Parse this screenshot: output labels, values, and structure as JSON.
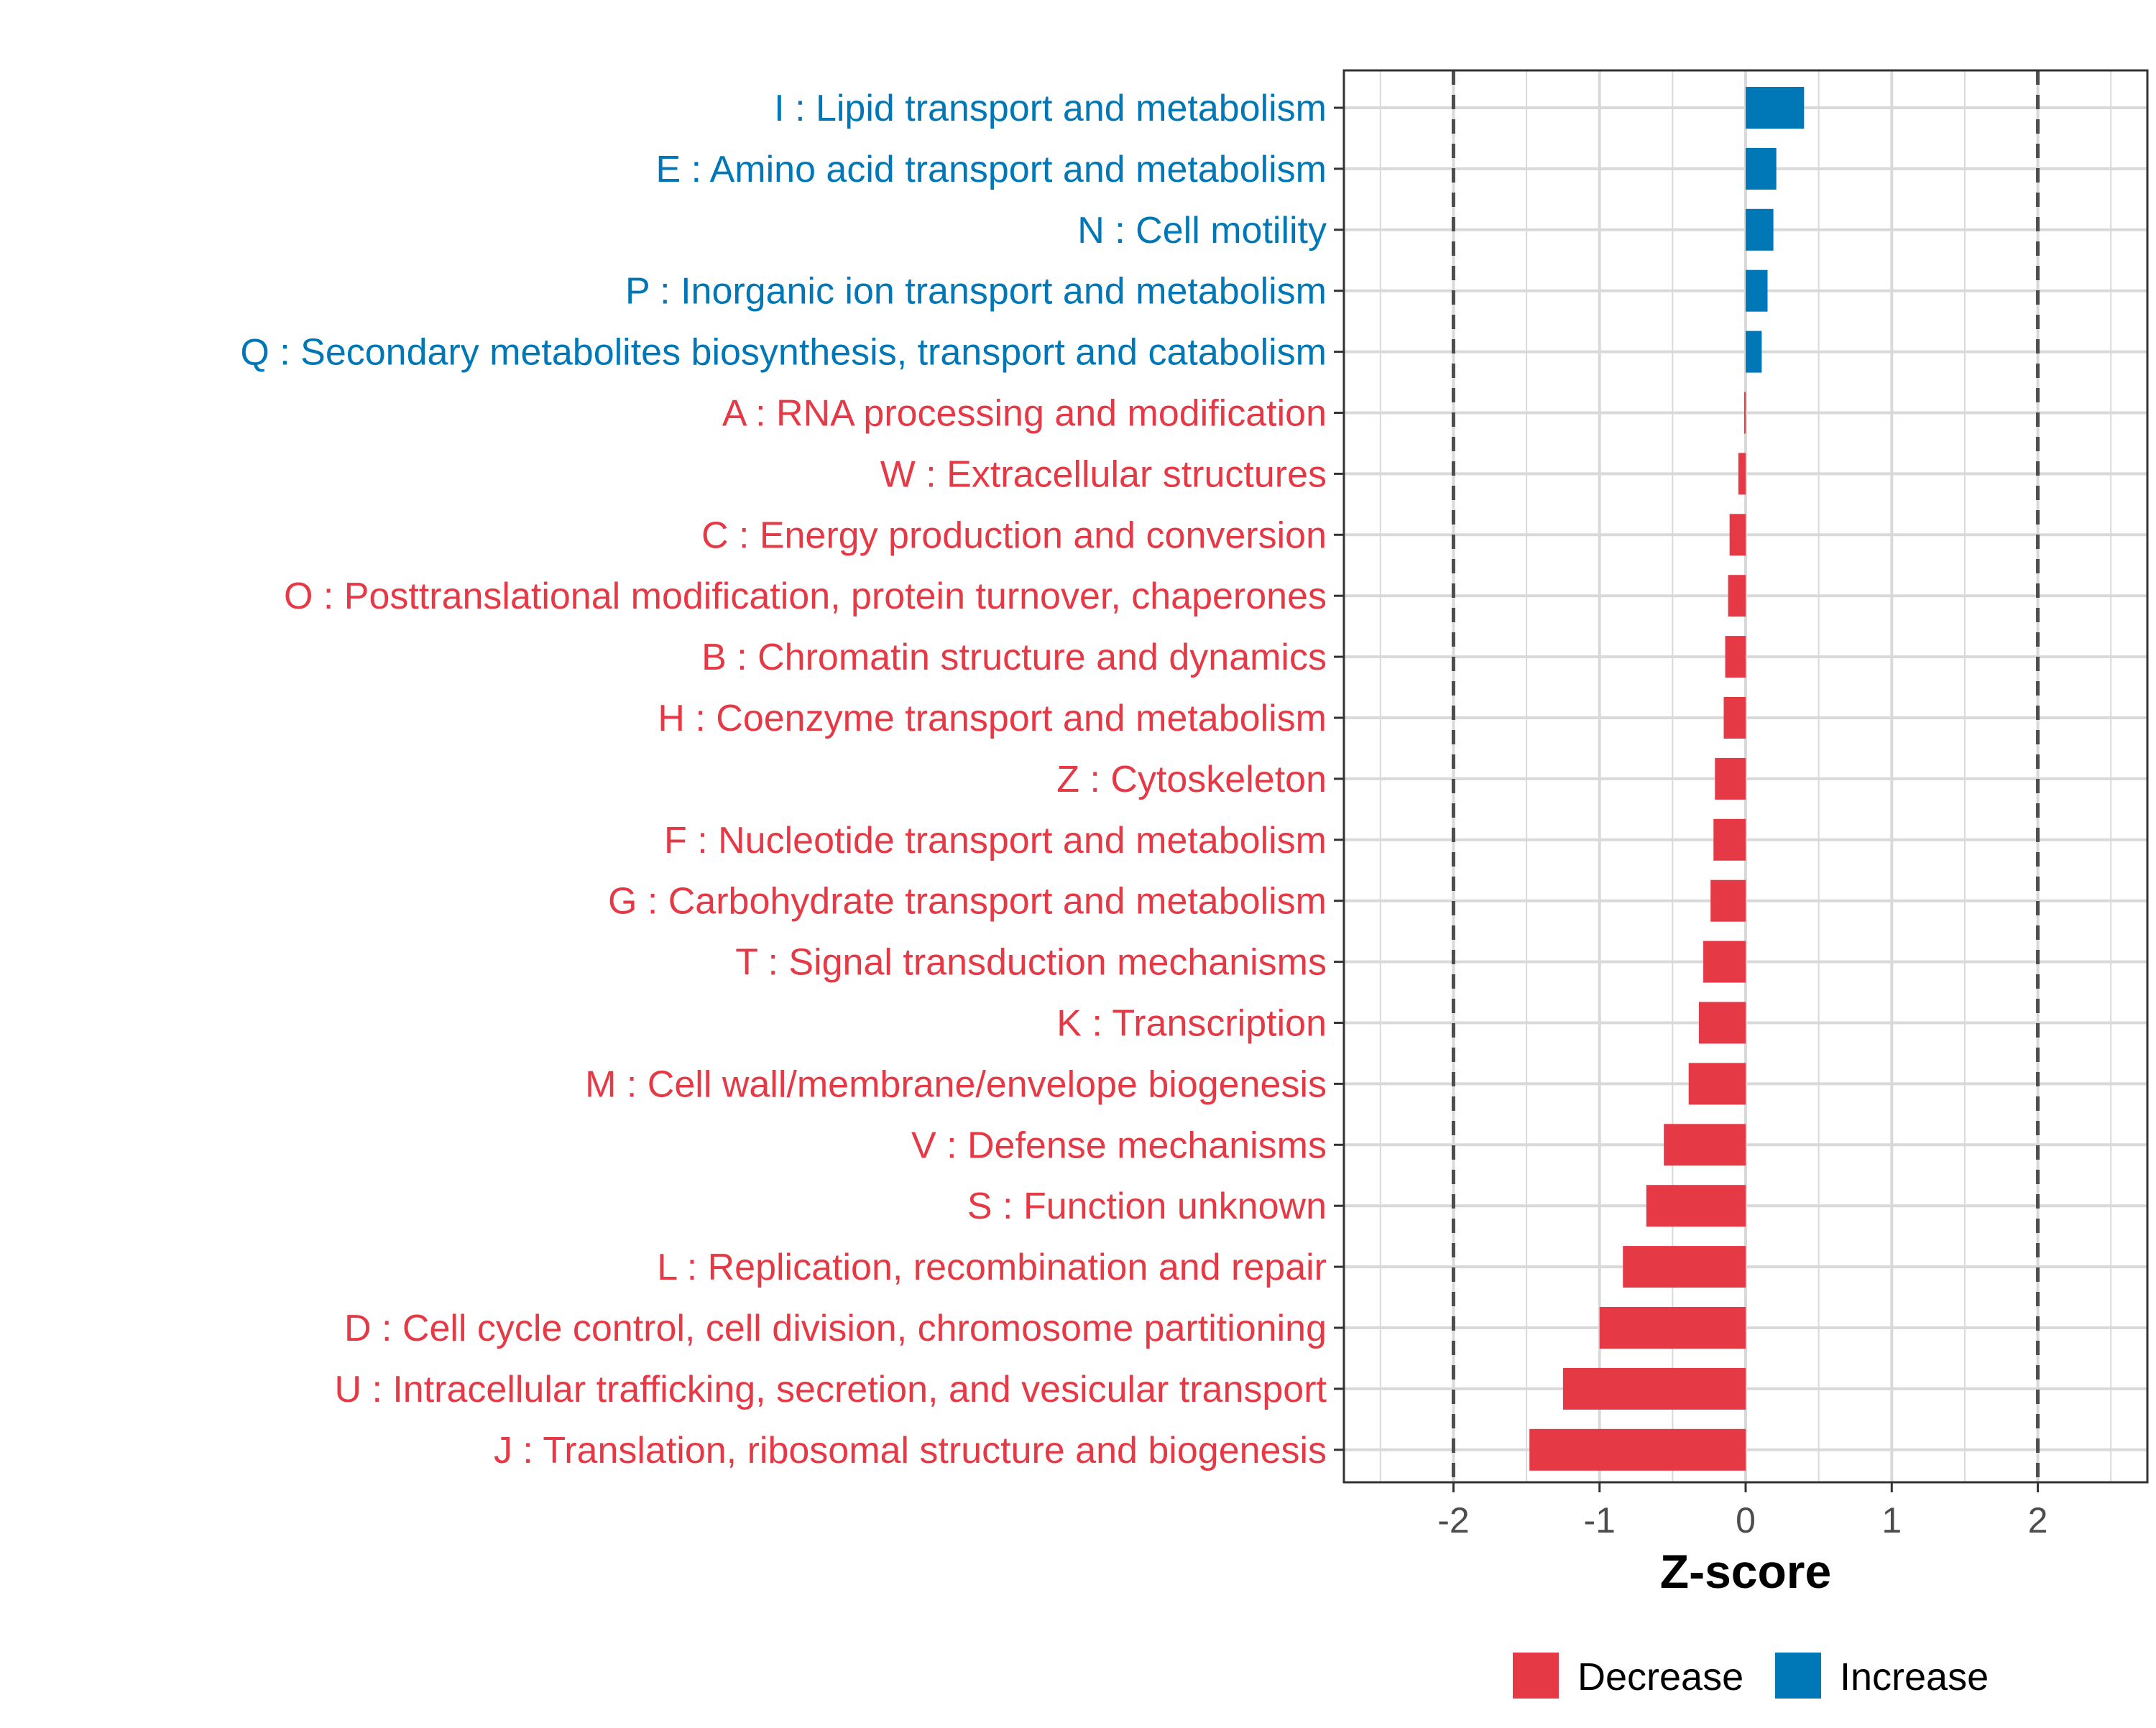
{
  "colors": {
    "decrease": "#E63946",
    "increase": "#0077B6",
    "grid": "#d9d9d9",
    "panel_border": "#333333",
    "ref_line": "#4d4d4d",
    "tick_text": "#4d4d4d"
  },
  "chart_data": {
    "type": "bar",
    "orientation": "horizontal",
    "title": "",
    "xlabel": "Z-score",
    "ylabel": "",
    "xlim": [
      -2.75,
      2.75
    ],
    "xticks": [
      -2,
      -1,
      0,
      1,
      2
    ],
    "xtick_labels": [
      "-2",
      "-1",
      "0",
      "1",
      "2"
    ],
    "reference_lines": [
      -2,
      2
    ],
    "grid": true,
    "legend_position": "bottom",
    "legend": [
      {
        "key": "decrease",
        "label": "Decrease"
      },
      {
        "key": "increase",
        "label": "Increase"
      }
    ],
    "categories": [
      "I : Lipid transport and metabolism",
      "E : Amino acid transport and metabolism",
      "N : Cell motility",
      "P : Inorganic ion transport and metabolism",
      "Q : Secondary metabolites biosynthesis, transport and catabolism",
      "A : RNA processing and modification",
      "W : Extracellular structures",
      "C : Energy production and conversion",
      "O : Posttranslational modification, protein turnover, chaperones",
      "B : Chromatin structure and dynamics",
      "H : Coenzyme transport and metabolism",
      "Z : Cytoskeleton",
      "F : Nucleotide transport and metabolism",
      "G : Carbohydrate transport and metabolism",
      "T : Signal transduction mechanisms",
      "K : Transcription",
      "M : Cell wall/membrane/envelope biogenesis",
      "V : Defense mechanisms",
      "S : Function unknown",
      "L : Replication, recombination and repair",
      "D : Cell cycle control, cell division, chromosome partitioning",
      "U : Intracellular trafficking, secretion, and vesicular transport",
      "J : Translation, ribosomal structure and biogenesis"
    ],
    "values": [
      0.4,
      0.21,
      0.19,
      0.15,
      0.11,
      -0.01,
      -0.05,
      -0.11,
      -0.12,
      -0.14,
      -0.15,
      -0.21,
      -0.22,
      -0.24,
      -0.29,
      -0.32,
      -0.39,
      -0.56,
      -0.68,
      -0.84,
      -1.0,
      -1.25,
      -1.48
    ],
    "groups": [
      "increase",
      "increase",
      "increase",
      "increase",
      "increase",
      "decrease",
      "decrease",
      "decrease",
      "decrease",
      "decrease",
      "decrease",
      "decrease",
      "decrease",
      "decrease",
      "decrease",
      "decrease",
      "decrease",
      "decrease",
      "decrease",
      "decrease",
      "decrease",
      "decrease",
      "decrease"
    ]
  }
}
